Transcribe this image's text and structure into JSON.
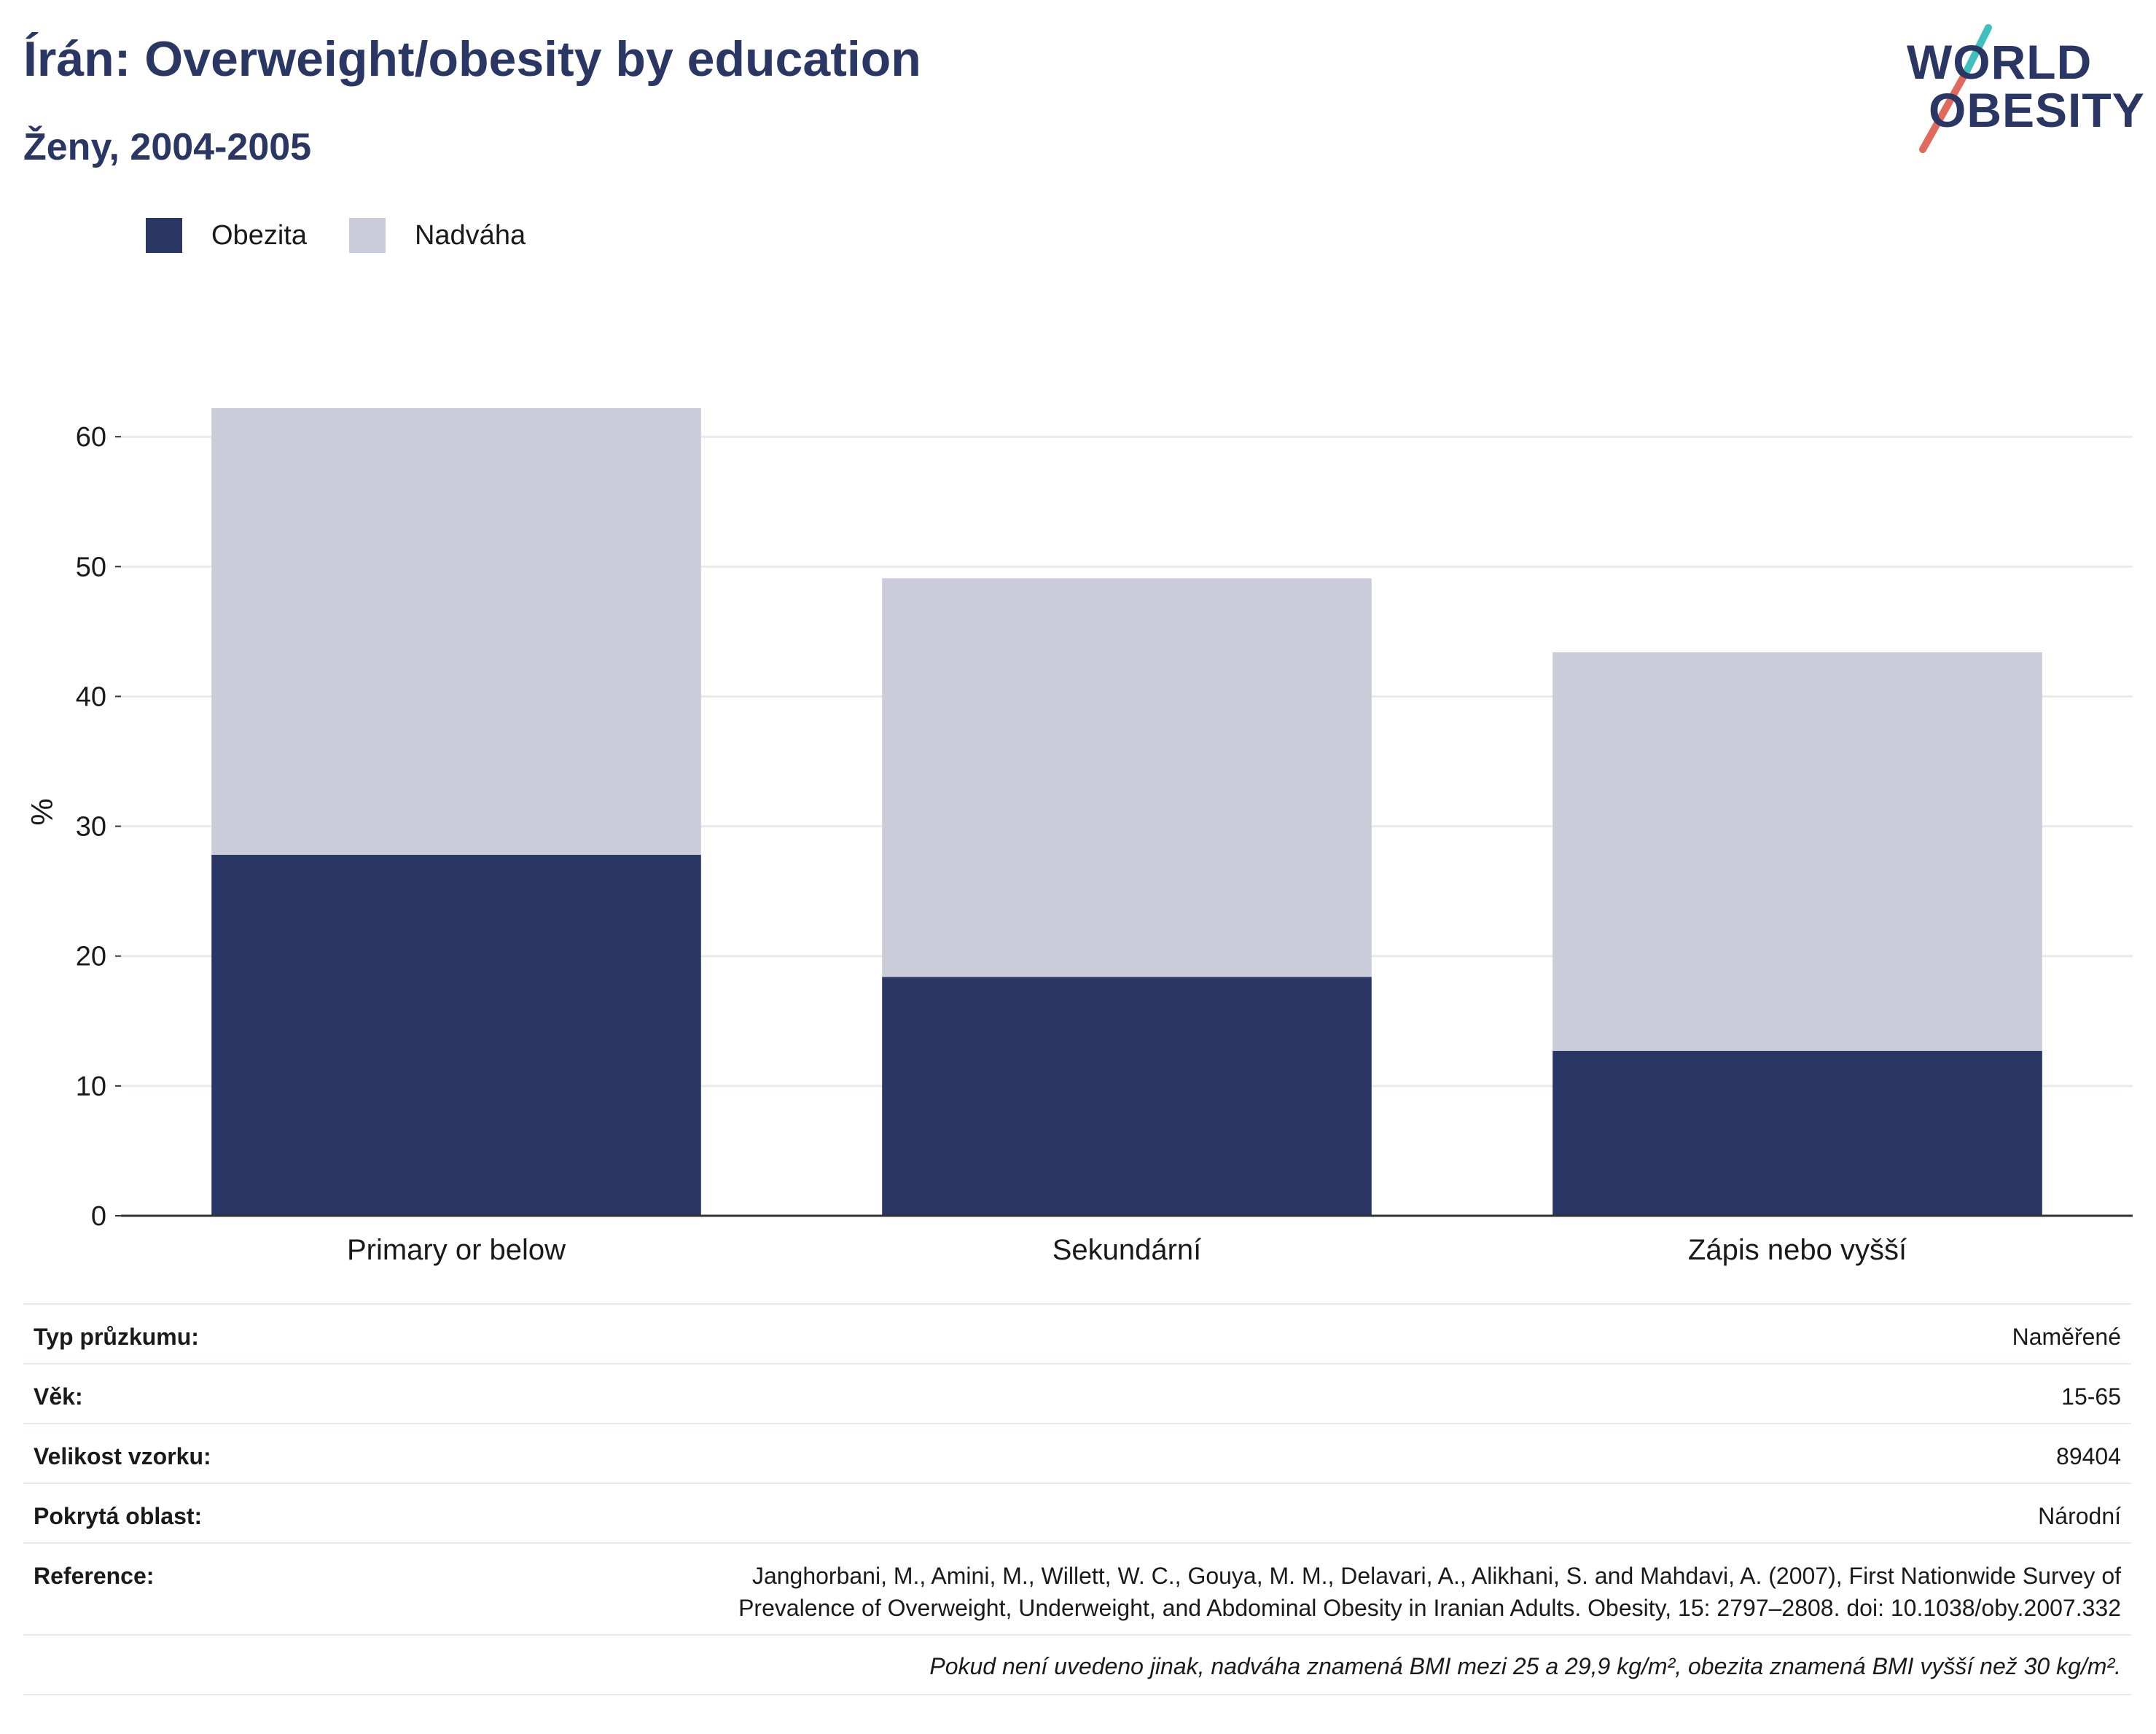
{
  "header": {
    "title": "Írán: Overweight/obesity by education",
    "subtitle": "Ženy, 2004-2005"
  },
  "logo": {
    "line1": "WORLD",
    "line2": "OBESITY"
  },
  "legend": [
    {
      "label": "Obezita",
      "color": "#2a3663"
    },
    {
      "label": "Nadváha",
      "color": "#cacdd9"
    }
  ],
  "chart_data": {
    "type": "bar",
    "stacked": true,
    "categories": [
      "Primary or below",
      "Sekundární",
      "Zápis nebo vyšší"
    ],
    "series": [
      {
        "name": "Obezita",
        "color": "#2a3663",
        "values": [
          27.8,
          18.4,
          12.7
        ]
      },
      {
        "name": "Nadváha",
        "color": "#cacdd9",
        "values": [
          34.4,
          30.7,
          30.7
        ]
      }
    ],
    "ylabel": "%",
    "xlabel": "",
    "ylim": [
      0,
      62.2
    ],
    "yticks": [
      0,
      10,
      20,
      30,
      40,
      50,
      60
    ],
    "grid": true,
    "legend_position": "top-left"
  },
  "info": [
    {
      "label": "Typ průzkumu:",
      "value": "Naměřené"
    },
    {
      "label": "Věk:",
      "value": "15-65"
    },
    {
      "label": "Velikost vzorku:",
      "value": "89404"
    },
    {
      "label": "Pokrytá oblast:",
      "value": "Národní"
    },
    {
      "label": "Reference:",
      "value_line1": "Janghorbani, M., Amini, M., Willett, W. C., Gouya, M. M., Delavari, A., Alikhani, S. and Mahdavi, A. (2007), First Nationwide Survey of",
      "value_line2": "Prevalence of Overweight, Underweight, and Abdominal Obesity in Iranian Adults. Obesity, 15: 2797–2808. doi: 10.1038/oby.2007.332"
    }
  ],
  "footnote": "Pokud není uvedeno jinak, nadváha znamená BMI mezi 25 a 29,9 kg/m², obezita znamená BMI vyšší než 30 kg/m²."
}
